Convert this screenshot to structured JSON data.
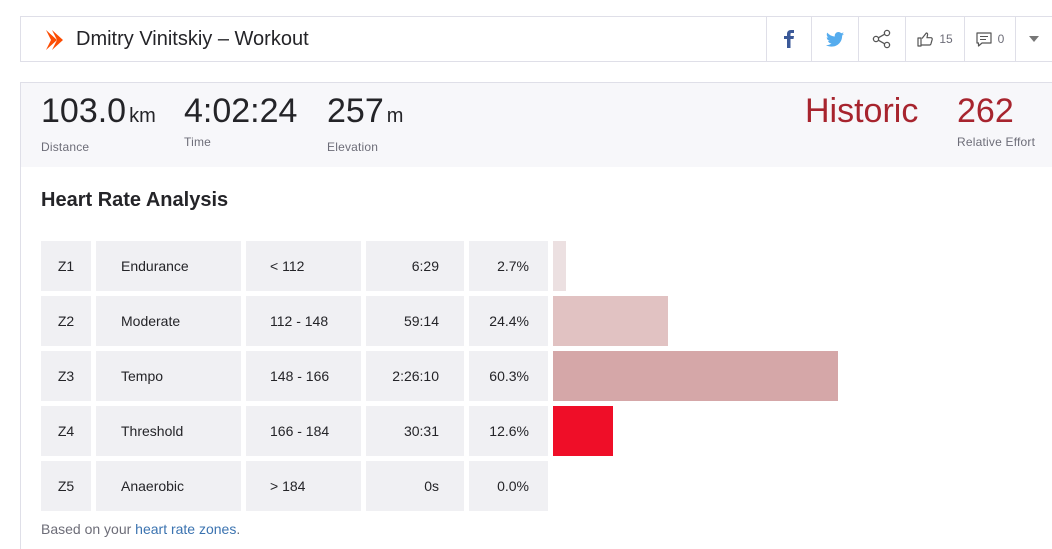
{
  "header": {
    "title": "Dmitry Vinitskiy – Workout",
    "likes_count": "15",
    "comments_count": "0"
  },
  "stats": {
    "distance": {
      "value": "103.0",
      "unit": "km",
      "label": "Distance"
    },
    "time": {
      "value": "4:02:24",
      "label": "Time"
    },
    "elevation": {
      "value": "257",
      "unit": "m",
      "label": "Elevation"
    },
    "historic": {
      "value": "Historic"
    },
    "relative_effort": {
      "value": "262",
      "label": "Relative Effort"
    }
  },
  "analysis": {
    "title": "Heart Rate Analysis",
    "zones": [
      {
        "zone": "Z1",
        "name": "Endurance",
        "range": "< 112",
        "time": "6:29",
        "percent_label": "2.7%",
        "percent": 2.7,
        "color": "#ece0e1"
      },
      {
        "zone": "Z2",
        "name": "Moderate",
        "range": "112 - 148",
        "time": "59:14",
        "percent_label": "24.4%",
        "percent": 24.4,
        "color": "#e1c2c2"
      },
      {
        "zone": "Z3",
        "name": "Tempo",
        "range": "148 - 166",
        "time": "2:26:10",
        "percent_label": "60.3%",
        "percent": 60.3,
        "color": "#d5a7a8"
      },
      {
        "zone": "Z4",
        "name": "Threshold",
        "range": "166 - 184",
        "time": "30:31",
        "percent_label": "12.6%",
        "percent": 12.6,
        "color": "#ef0e28"
      },
      {
        "zone": "Z5",
        "name": "Anaerobic",
        "range": "> 184",
        "time": "0s",
        "percent_label": "0.0%",
        "percent": 0.0,
        "color": "#e6c6c6"
      }
    ],
    "footer_text": "Based on your ",
    "footer_link": "heart rate zones",
    "footer_end": "."
  },
  "colors": {
    "accent": "#fc4c02",
    "historic": "#a7242e"
  },
  "icons": [
    "strava-logo-icon",
    "facebook-icon",
    "twitter-icon",
    "share-icon",
    "thumbs-up-icon",
    "comment-icon",
    "chevron-down-icon"
  ]
}
